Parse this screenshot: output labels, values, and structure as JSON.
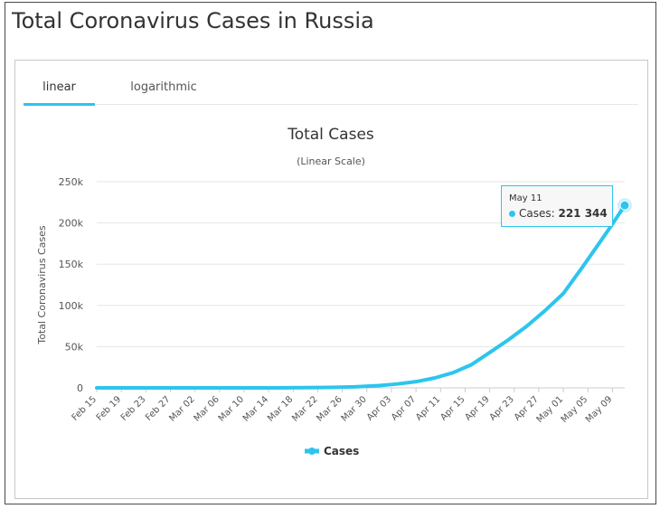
{
  "page": {
    "title": "Total Coronavirus Cases in Russia"
  },
  "tabs": [
    {
      "label": "linear",
      "active": true
    },
    {
      "label": "logarithmic",
      "active": false
    }
  ],
  "tooltip": {
    "date": "May 11",
    "series": "Cases",
    "value": "221 344"
  },
  "colors": {
    "series": "#2cc5ee",
    "grid": "#e6e6e6",
    "text": "#333333"
  },
  "chart_data": {
    "type": "line",
    "title": "Total Cases",
    "subtitle": "(Linear Scale)",
    "xlabel": "",
    "ylabel": "Total Coronavirus Cases",
    "ylim": [
      0,
      250000
    ],
    "yticks": [
      "0",
      "50k",
      "100k",
      "150k",
      "200k",
      "250k"
    ],
    "ytick_values": [
      0,
      50000,
      100000,
      150000,
      200000,
      250000
    ],
    "grid": true,
    "legend": "bottom-center",
    "xtick_labels": [
      "Feb 15",
      "Feb 19",
      "Feb 23",
      "Feb 27",
      "Mar 02",
      "Mar 06",
      "Mar 10",
      "Mar 14",
      "Mar 18",
      "Mar 22",
      "Mar 26",
      "Mar 30",
      "Apr 03",
      "Apr 07",
      "Apr 11",
      "Apr 15",
      "Apr 19",
      "Apr 23",
      "Apr 27",
      "May 01",
      "May 05",
      "May 09"
    ],
    "x_start": "Feb 15",
    "x_end": "May 11",
    "series": [
      {
        "name": "Cases",
        "x": [
          "Feb 15",
          "Feb 25",
          "Mar 05",
          "Mar 10",
          "Mar 15",
          "Mar 20",
          "Mar 24",
          "Mar 28",
          "Apr 01",
          "Apr 04",
          "Apr 07",
          "Apr 10",
          "Apr 13",
          "Apr 16",
          "Apr 19",
          "Apr 22",
          "Apr 25",
          "Apr 28",
          "May 01",
          "May 04",
          "May 07",
          "May 09",
          "May 11"
        ],
        "values": [
          2,
          2,
          4,
          10,
          63,
          253,
          495,
          1264,
          2777,
          4731,
          7497,
          11917,
          18328,
          27938,
          42853,
          57999,
          74588,
          93558,
          114431,
          145268,
          177160,
          198676,
          221344
        ]
      }
    ]
  }
}
